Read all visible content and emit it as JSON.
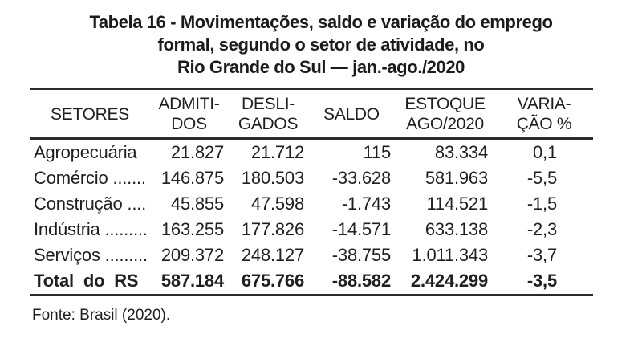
{
  "page": {
    "title": "Tabela 16 - Movimentações, saldo e variação do emprego\nformal, segundo o setor de atividade, no\nRio Grande do Sul — jan.-ago./2020",
    "source": "Fonte: Brasil (2020)."
  },
  "table": {
    "headers": {
      "setores": "SETORES",
      "admitidos": "ADMITI-\nDOS",
      "desligados": "DESLI-\nGADOS",
      "saldo": "SALDO",
      "estoque": "ESTOQUE\nAGO/2020",
      "variacao": "VARIA-\nÇÃO %"
    },
    "rows": [
      {
        "setor": "Agropecuária",
        "admitidos": "21.827",
        "desligados": "21.712",
        "saldo": "115",
        "estoque": "83.334",
        "variacao": "0,1"
      },
      {
        "setor": "Comércio .......",
        "admitidos": "146.875",
        "desligados": "180.503",
        "saldo": "-33.628",
        "estoque": "581.963",
        "variacao": "-5,5"
      },
      {
        "setor": "Construção ....",
        "admitidos": "45.855",
        "desligados": "47.598",
        "saldo": "-1.743",
        "estoque": "114.521",
        "variacao": "-1,5"
      },
      {
        "setor": "Indústria .........",
        "admitidos": "163.255",
        "desligados": "177.826",
        "saldo": "-14.571",
        "estoque": "633.138",
        "variacao": "-2,3"
      },
      {
        "setor": "Serviços .........",
        "admitidos": "209.372",
        "desligados": "248.127",
        "saldo": "-38.755",
        "estoque": "1.011.343",
        "variacao": "-3,7"
      }
    ],
    "total": {
      "setor": "Total do RS",
      "admitidos": "587.184",
      "desligados": "675.766",
      "saldo": "-88.582",
      "estoque": "2.424.299",
      "variacao": "-3,5"
    }
  },
  "colors": {
    "text": "#1f1f1f",
    "rule": "#2b2b2b",
    "background": "#ffffff"
  }
}
